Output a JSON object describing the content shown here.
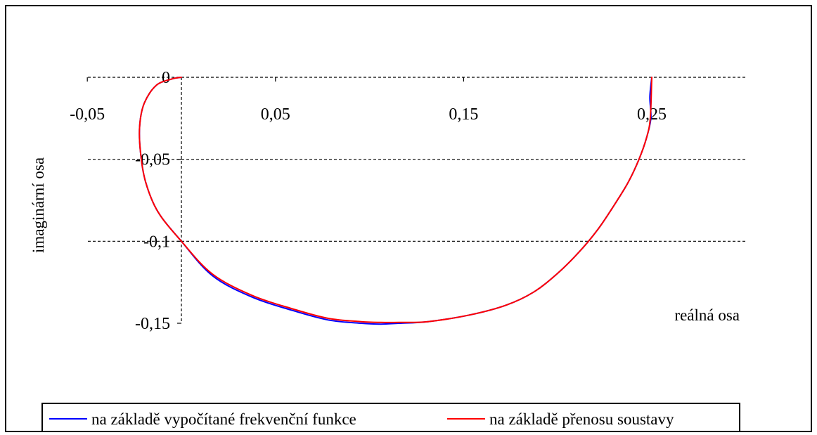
{
  "chart_data": {
    "type": "line",
    "title": "",
    "xlabel": "reálná osa",
    "ylabel": "imaginární osa",
    "xlim": [
      -0.05,
      0.3
    ],
    "ylim": [
      -0.15,
      0
    ],
    "x_ticks": [
      {
        "value": -0.05,
        "label": "-0,05"
      },
      {
        "value": 0.05,
        "label": "0,05"
      },
      {
        "value": 0.15,
        "label": "0,15"
      },
      {
        "value": 0.25,
        "label": "0,25"
      }
    ],
    "y_ticks": [
      {
        "value": 0,
        "label": "0"
      },
      {
        "value": -0.05,
        "label": "-0,05"
      },
      {
        "value": -0.1,
        "label": "-0,1"
      },
      {
        "value": -0.15,
        "label": "-0,15"
      }
    ],
    "grid": "dashed horizontal",
    "legend_position": "bottom",
    "series": [
      {
        "name": "na základě vypočítané frekvenční funkce",
        "color": "#0000ff",
        "x": [
          0.25,
          0.249,
          0.2495,
          0.2472,
          0.2432,
          0.2375,
          0.23,
          0.2212,
          0.211,
          0.1995,
          0.1872,
          0.1725,
          0.153,
          0.131,
          0.1155,
          0.106,
          0.0955,
          0.078,
          0.0585,
          0.0375,
          0.0165,
          0.0,
          -0.0125,
          -0.019,
          -0.0217,
          -0.0222,
          -0.0198,
          -0.0135,
          -0.005,
          0.0
        ],
        "y": [
          0.0,
          -0.012,
          -0.025,
          -0.037,
          -0.05,
          -0.064,
          -0.078,
          -0.093,
          -0.107,
          -0.12,
          -0.131,
          -0.139,
          -0.145,
          -0.149,
          -0.15,
          -0.1505,
          -0.15,
          -0.148,
          -0.142,
          -0.134,
          -0.121,
          -0.1,
          -0.082,
          -0.064,
          -0.046,
          -0.03,
          -0.016,
          -0.005,
          -0.001,
          0.0
        ]
      },
      {
        "name": "na základě přenosu soustavy",
        "color": "#ff0000",
        "x": [
          0.25,
          0.2492,
          0.2472,
          0.2432,
          0.2375,
          0.23,
          0.2212,
          0.211,
          0.1995,
          0.1872,
          0.1725,
          0.153,
          0.131,
          0.1155,
          0.106,
          0.0955,
          0.078,
          0.0585,
          0.0375,
          0.0165,
          0.0,
          -0.0125,
          -0.019,
          -0.0217,
          -0.0222,
          -0.0198,
          -0.0135,
          -0.005,
          0.0
        ],
        "y": [
          0.0,
          -0.025,
          -0.037,
          -0.05,
          -0.064,
          -0.078,
          -0.093,
          -0.107,
          -0.12,
          -0.131,
          -0.139,
          -0.145,
          -0.149,
          -0.1495,
          -0.1495,
          -0.149,
          -0.147,
          -0.141,
          -0.133,
          -0.12,
          -0.1,
          -0.082,
          -0.064,
          -0.046,
          -0.03,
          -0.016,
          -0.005,
          -0.001,
          0.0
        ]
      }
    ]
  }
}
